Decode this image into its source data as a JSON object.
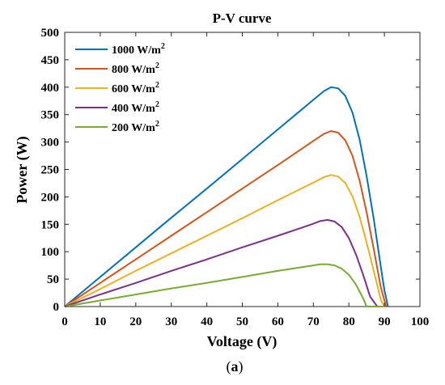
{
  "caption": {
    "open": "(",
    "letter": "a",
    "close": ")"
  },
  "chart_data": {
    "type": "line",
    "title": "P-V curve",
    "xlabel": "Voltage (V)",
    "ylabel": "Power (W)",
    "xlim": [
      0,
      100
    ],
    "ylim": [
      0,
      500
    ],
    "xticks": [
      0,
      10,
      20,
      30,
      40,
      50,
      60,
      70,
      80,
      90,
      100
    ],
    "yticks": [
      0,
      50,
      100,
      150,
      200,
      250,
      300,
      350,
      400,
      450,
      500
    ],
    "grid": false,
    "legend_position": "top-left",
    "series": [
      {
        "name": "1000 W/m",
        "sup": "2",
        "color": "#0072BD",
        "x": [
          0,
          10,
          20,
          30,
          40,
          50,
          60,
          65,
          70,
          73,
          75,
          77,
          79,
          81,
          83,
          85,
          87,
          89,
          90,
          91
        ],
        "y": [
          0,
          54,
          108,
          162,
          215,
          269,
          323,
          350,
          377,
          393,
          400,
          398,
          384,
          354,
          305,
          238,
          160,
          72,
          30,
          0
        ]
      },
      {
        "name": "800 W/m",
        "sup": "2",
        "color": "#D95319",
        "x": [
          0,
          10,
          20,
          30,
          40,
          50,
          60,
          65,
          70,
          73,
          75,
          77,
          79,
          81,
          83,
          85,
          87,
          89,
          90.5
        ],
        "y": [
          0,
          43,
          86,
          129,
          172,
          215,
          258,
          280,
          302,
          315,
          320,
          317,
          303,
          275,
          230,
          172,
          105,
          35,
          0
        ]
      },
      {
        "name": "600 W/m",
        "sup": "2",
        "color": "#EDB120",
        "x": [
          0,
          10,
          20,
          30,
          40,
          50,
          60,
          65,
          70,
          73,
          75,
          77,
          79,
          81,
          83,
          85,
          87,
          89,
          90
        ],
        "y": [
          0,
          32,
          65,
          97,
          129,
          161,
          194,
          210,
          226,
          236,
          240,
          237,
          225,
          201,
          164,
          117,
          65,
          12,
          0
        ]
      },
      {
        "name": "400 W/m",
        "sup": "2",
        "color": "#7E2F8E",
        "x": [
          0,
          10,
          20,
          30,
          40,
          50,
          60,
          65,
          70,
          72,
          74,
          76,
          78,
          80,
          82,
          84,
          86,
          88
        ],
        "y": [
          0,
          22,
          43,
          65,
          86,
          108,
          129,
          140,
          151,
          156,
          158,
          155,
          145,
          125,
          95,
          58,
          18,
          0
        ]
      },
      {
        "name": "200 W/m",
        "sup": "2",
        "color": "#77AC30",
        "x": [
          0,
          10,
          20,
          30,
          40,
          50,
          60,
          65,
          70,
          72,
          74,
          76,
          78,
          80,
          82,
          84,
          85,
          89
        ],
        "y": [
          0,
          11,
          22,
          33,
          43,
          54,
          65,
          70,
          75,
          77,
          77,
          75,
          69,
          58,
          40,
          15,
          0,
          0
        ]
      }
    ]
  }
}
